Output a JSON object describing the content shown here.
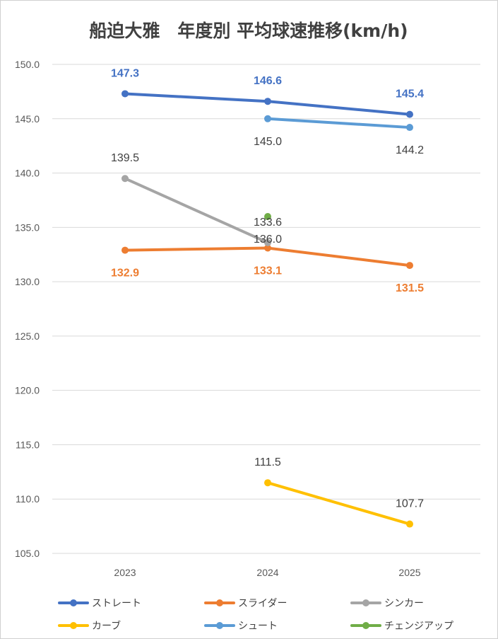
{
  "chart_data": {
    "type": "line",
    "title": "船迫大雅　年度別 平均球速推移(km/h)",
    "xlabel": "",
    "ylabel": "",
    "categories": [
      "2023",
      "2024",
      "2025"
    ],
    "ylim": [
      105.0,
      150.0
    ],
    "yticks": [
      "105.0",
      "110.0",
      "115.0",
      "120.0",
      "125.0",
      "130.0",
      "135.0",
      "140.0",
      "145.0",
      "150.0"
    ],
    "grid": true,
    "legend_position": "bottom",
    "series": [
      {
        "name": "ストレート",
        "color": "#4472C4",
        "values": [
          147.3,
          146.6,
          145.4
        ],
        "labels": [
          "147.3",
          "146.6",
          "145.4"
        ],
        "label_pos": [
          "above",
          "above",
          "above"
        ],
        "label_color": "#4472C4",
        "label_bold": true
      },
      {
        "name": "スライダー",
        "color": "#ED7D31",
        "values": [
          132.9,
          133.1,
          131.5
        ],
        "labels": [
          "132.9",
          "133.1",
          "131.5"
        ],
        "label_pos": [
          "below",
          "below",
          "below"
        ],
        "label_color": "#ED7D31",
        "label_bold": true
      },
      {
        "name": "シンカー",
        "color": "#A5A5A5",
        "values": [
          139.5,
          133.6,
          null
        ],
        "labels": [
          "139.5",
          "133.6",
          null
        ],
        "label_pos": [
          "above",
          "above",
          null
        ],
        "label_color": "#404040",
        "label_bold": false
      },
      {
        "name": "カーブ",
        "color": "#FFC000",
        "values": [
          null,
          111.5,
          107.7
        ],
        "labels": [
          null,
          "111.5",
          "107.7"
        ],
        "label_pos": [
          null,
          "above",
          "above"
        ],
        "label_color": "#404040",
        "label_bold": false
      },
      {
        "name": "シュート",
        "color": "#5B9BD5",
        "values": [
          null,
          145.0,
          144.2
        ],
        "labels": [
          null,
          "145.0",
          "144.2"
        ],
        "label_pos": [
          null,
          "below",
          "below"
        ],
        "label_color": "#404040",
        "label_bold": false
      },
      {
        "name": "チェンジアップ",
        "color": "#70AD47",
        "values": [
          null,
          136.0,
          null
        ],
        "labels": [
          null,
          "136.0",
          null
        ],
        "label_pos": [
          null,
          "below",
          null
        ],
        "label_color": "#404040",
        "label_bold": false
      }
    ]
  }
}
